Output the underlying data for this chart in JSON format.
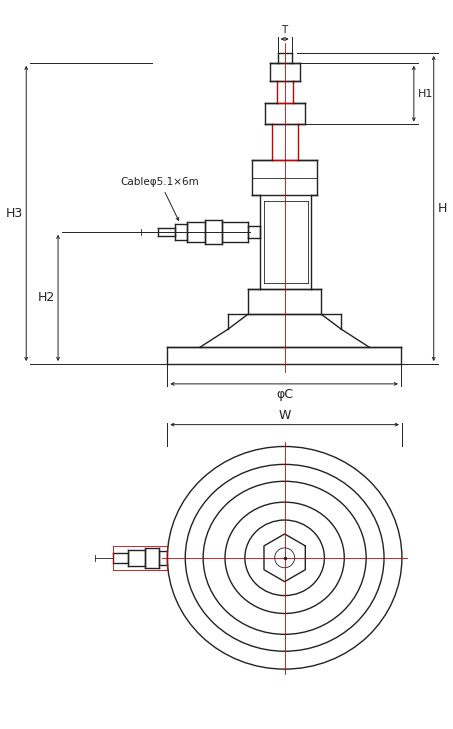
{
  "bg_color": "#ffffff",
  "line_color": "#222222",
  "red_color": "#cc0000",
  "dim_color": "#222222",
  "fig_width": 4.53,
  "fig_height": 7.29,
  "cable_label": "Cableφ5.1×6m",
  "dim_T": "T",
  "dim_H1": "H1",
  "dim_H": "H",
  "dim_H2": "H2",
  "dim_H3": "H3",
  "dim_phiC": "φC",
  "dim_W": "W",
  "lw_main": 1.0,
  "lw_thin": 0.6,
  "lw_dim": 0.7
}
